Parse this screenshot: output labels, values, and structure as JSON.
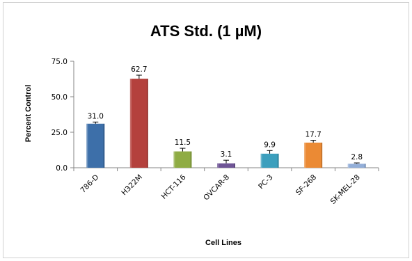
{
  "chart_data": {
    "type": "bar",
    "title": "ATS Std. (1 µM)",
    "xlabel": "Cell Lines",
    "ylabel": "Percent Control",
    "ylim": [
      0,
      75
    ],
    "yticks": [
      "0.0",
      "25.0",
      "50.0",
      "75.0"
    ],
    "grid": false,
    "legend": "none",
    "error_bars": true,
    "categories": [
      "786-D",
      "H322M",
      "HCT-116",
      "OVCAR-8",
      "PC-3",
      "SF-268",
      "SK-MEL-28"
    ],
    "values": [
      31.0,
      62.7,
      11.5,
      3.1,
      9.9,
      17.7,
      2.8
    ],
    "value_labels": [
      "31.0",
      "62.7",
      "11.5",
      "3.1",
      "9.9",
      "17.7",
      "2.8"
    ],
    "errors": [
      1.2,
      2.5,
      2.2,
      2.2,
      2.2,
      1.6,
      0.6
    ],
    "colors": [
      "#3d6fa9",
      "#b4413d",
      "#8fac44",
      "#6f5596",
      "#3c9fbd",
      "#eb8a34",
      "#92aed8"
    ]
  }
}
